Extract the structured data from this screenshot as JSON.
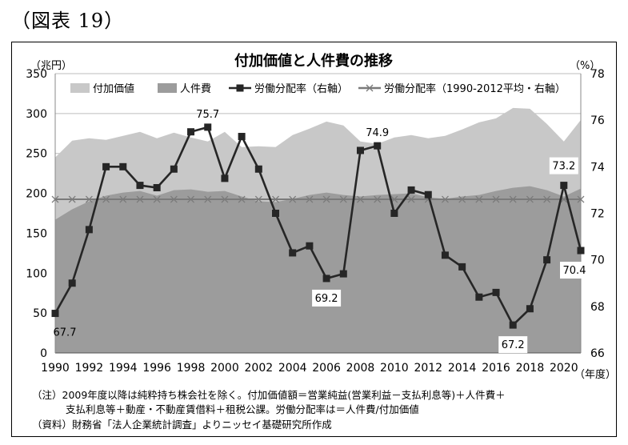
{
  "figure_label": "（図表 19）",
  "chart_data": {
    "type": "area",
    "title": "付加価値と人件費の推移",
    "left_unit": "（兆円）",
    "right_unit": "（%）",
    "x_unit": "（年度）",
    "x": [
      1990,
      1991,
      1992,
      1993,
      1994,
      1995,
      1996,
      1997,
      1998,
      1999,
      2000,
      2001,
      2002,
      2003,
      2004,
      2005,
      2006,
      2007,
      2008,
      2009,
      2010,
      2011,
      2012,
      2013,
      2014,
      2015,
      2016,
      2017,
      2018,
      2019,
      2020,
      2021
    ],
    "x_ticks": [
      "1990",
      "1992",
      "1994",
      "1996",
      "1998",
      "2000",
      "2002",
      "2004",
      "2006",
      "2008",
      "2010",
      "2012",
      "2014",
      "2016",
      "2018",
      "2020"
    ],
    "x_tick_values": [
      1990,
      1992,
      1994,
      1996,
      1998,
      2000,
      2002,
      2004,
      2006,
      2008,
      2010,
      2012,
      2014,
      2016,
      2018,
      2020
    ],
    "ylim_left": [
      0,
      350
    ],
    "yticks_left": [
      "0",
      "50",
      "100",
      "150",
      "200",
      "250",
      "300",
      "350"
    ],
    "ylim_right": [
      66,
      78
    ],
    "yticks_right": [
      "66",
      "68",
      "70",
      "72",
      "74",
      "76",
      "78"
    ],
    "grid": "horizontal",
    "legend_placement": "top",
    "series": [
      {
        "name": "付加価値",
        "kind": "area",
        "axis": "left",
        "color": "#c8c8c8",
        "values": [
          245,
          266,
          269,
          267,
          272,
          277,
          269,
          276,
          270,
          265,
          277,
          258,
          259,
          258,
          273,
          281,
          290,
          285,
          265,
          262,
          270,
          273,
          269,
          272,
          280,
          289,
          294,
          307,
          306,
          287,
          265,
          292
        ]
      },
      {
        "name": "人件費",
        "kind": "area",
        "axis": "left",
        "color": "#9c9c9c",
        "values": [
          167,
          180,
          190,
          197,
          201,
          203,
          197,
          204,
          205,
          202,
          203,
          196,
          190,
          189,
          193,
          198,
          201,
          198,
          196,
          198,
          199,
          200,
          195,
          193,
          196,
          198,
          203,
          207,
          209,
          204,
          196,
          206
        ]
      },
      {
        "name": "労働分配率（右軸）",
        "kind": "line",
        "axis": "right",
        "color": "#262626",
        "values": [
          67.7,
          69.0,
          71.3,
          74.0,
          74.0,
          73.2,
          73.1,
          73.9,
          75.5,
          75.7,
          73.5,
          75.3,
          73.9,
          72.0,
          70.3,
          70.6,
          69.2,
          69.4,
          74.7,
          74.9,
          72.0,
          73.0,
          72.8,
          70.2,
          69.7,
          68.4,
          68.6,
          67.2,
          67.9,
          70.0,
          73.2,
          70.4
        ]
      },
      {
        "name": "労働分配率（1990-2012平均・右軸）",
        "kind": "line",
        "axis": "right",
        "color": "#7a7a7a",
        "values": [
          72.6,
          72.6,
          72.6,
          72.6,
          72.6,
          72.6,
          72.6,
          72.6,
          72.6,
          72.6,
          72.6,
          72.6,
          72.6,
          72.6,
          72.6,
          72.6,
          72.6,
          72.6,
          72.6,
          72.6,
          72.6,
          72.6,
          72.6,
          72.6,
          72.6,
          72.6,
          72.6,
          72.6,
          72.6,
          72.6,
          72.6,
          72.6
        ]
      }
    ],
    "annotations": [
      {
        "year": 1990,
        "text": "67.7",
        "boxed": false
      },
      {
        "year": 1999,
        "text": "75.7",
        "boxed": false
      },
      {
        "year": 2006,
        "text": "69.2",
        "boxed": true
      },
      {
        "year": 2009,
        "text": "74.9",
        "boxed": false
      },
      {
        "year": 2017,
        "text": "67.2",
        "boxed": true
      },
      {
        "year": 2020,
        "text": "73.2",
        "boxed": true
      },
      {
        "year": 2021,
        "text": "70.4",
        "boxed": true
      }
    ]
  },
  "notes": {
    "line1": "（注）2009年度以降は純粋持ち株会社を除く。付加価値額＝営業純益(営業利益－支払利息等)＋人件費＋",
    "line2": "支払利息等＋動産・不動産賃借料＋租税公課。労働分配率は＝人件費/付加価値",
    "line3": "（資料）財務省「法人企業統計調査」よりニッセイ基礎研究所作成"
  }
}
